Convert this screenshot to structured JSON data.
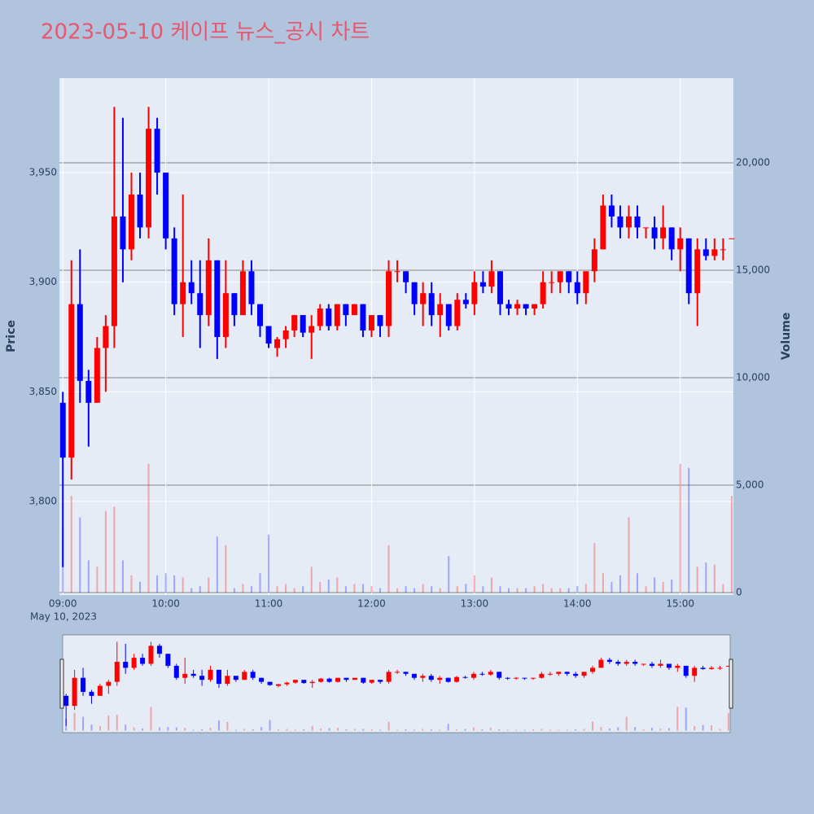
{
  "chart_data": {
    "type": "candlestick",
    "title": "2023-05-10 케이프 뉴스_공시 차트",
    "y_label": "Price",
    "y2_label": "Volume",
    "x_date_label": "May 10, 2023",
    "increasing_color": "#ff0000",
    "decreasing_color": "#0000ff",
    "xlim": [
      "2023-05-10 08:58",
      "2023-05-10 15:31"
    ],
    "xticks": [
      {
        "value": "2023-05-10 09:00",
        "label": "09:00"
      },
      {
        "value": "2023-05-10 10:00",
        "label": "10:00"
      },
      {
        "value": "2023-05-10 11:00",
        "label": "11:00"
      },
      {
        "value": "2023-05-10 12:00",
        "label": "12:00"
      },
      {
        "value": "2023-05-10 13:00",
        "label": "13:00"
      },
      {
        "value": "2023-05-10 14:00",
        "label": "14:00"
      },
      {
        "value": "2023-05-10 15:00",
        "label": "15:00"
      }
    ],
    "ylim": [
      3757.3,
      3993.1
    ],
    "yticks": [
      {
        "value": 3800,
        "label": "3,800"
      },
      {
        "value": 3850,
        "label": "3,850"
      },
      {
        "value": 3900,
        "label": "3,900"
      },
      {
        "value": 3950,
        "label": "3,950"
      }
    ],
    "y2lim": [
      -114,
      23939
    ],
    "y2ticks": [
      0,
      {
        "value": 5000,
        "label": "5,000"
      },
      {
        "value": 10000,
        "label": "10,000"
      },
      {
        "value": 15000,
        "label": "15,000"
      },
      {
        "value": 20000,
        "label": "20,000"
      }
    ],
    "x": [
      "2023-05-10 09:00",
      "2023-05-10 09:05",
      "2023-05-10 09:10",
      "2023-05-10 09:15",
      "2023-05-10 09:20",
      "2023-05-10 09:25",
      "2023-05-10 09:30",
      "2023-05-10 09:35",
      "2023-05-10 09:40",
      "2023-05-10 09:45",
      "2023-05-10 09:50",
      "2023-05-10 09:55",
      "2023-05-10 10:00",
      "2023-05-10 10:05",
      "2023-05-10 10:10",
      "2023-05-10 10:15",
      "2023-05-10 10:20",
      "2023-05-10 10:25",
      "2023-05-10 10:30",
      "2023-05-10 10:35",
      "2023-05-10 10:40",
      "2023-05-10 10:45",
      "2023-05-10 10:50",
      "2023-05-10 10:55",
      "2023-05-10 11:00",
      "2023-05-10 11:05",
      "2023-05-10 11:10",
      "2023-05-10 11:15",
      "2023-05-10 11:20",
      "2023-05-10 11:25",
      "2023-05-10 11:30",
      "2023-05-10 11:35",
      "2023-05-10 11:40",
      "2023-05-10 11:45",
      "2023-05-10 11:50",
      "2023-05-10 11:55",
      "2023-05-10 12:00",
      "2023-05-10 12:05",
      "2023-05-10 12:10",
      "2023-05-10 12:15",
      "2023-05-10 12:20",
      "2023-05-10 12:25",
      "2023-05-10 12:30",
      "2023-05-10 12:35",
      "2023-05-10 12:40",
      "2023-05-10 12:45",
      "2023-05-10 12:50",
      "2023-05-10 12:55",
      "2023-05-10 13:00",
      "2023-05-10 13:05",
      "2023-05-10 13:10",
      "2023-05-10 13:15",
      "2023-05-10 13:20",
      "2023-05-10 13:25",
      "2023-05-10 13:30",
      "2023-05-10 13:35",
      "2023-05-10 13:40",
      "2023-05-10 13:45",
      "2023-05-10 13:50",
      "2023-05-10 13:55",
      "2023-05-10 14:00",
      "2023-05-10 14:05",
      "2023-05-10 14:10",
      "2023-05-10 14:15",
      "2023-05-10 14:20",
      "2023-05-10 14:25",
      "2023-05-10 14:30",
      "2023-05-10 14:35",
      "2023-05-10 14:40",
      "2023-05-10 14:45",
      "2023-05-10 14:50",
      "2023-05-10 14:55",
      "2023-05-10 15:00",
      "2023-05-10 15:05",
      "2023-05-10 15:10",
      "2023-05-10 15:15",
      "2023-05-10 15:20",
      "2023-05-10 15:25",
      "2023-05-10 15:30"
    ],
    "open": [
      3845,
      3820,
      3890,
      3855,
      3845,
      3870,
      3880,
      3930,
      3915,
      3940,
      3925,
      3970,
      3950,
      3920,
      3890,
      3900,
      3895,
      3885,
      3910,
      3875,
      3895,
      3885,
      3905,
      3890,
      3880,
      3870,
      3874,
      3878,
      3885,
      3877,
      3880,
      3888,
      3880,
      3890,
      3885,
      3890,
      3878,
      3885,
      3880,
      3905,
      3905,
      3900,
      3890,
      3895,
      3885,
      3890,
      3880,
      3892,
      3890,
      3900,
      3898,
      3905,
      3890,
      3888,
      3890,
      3888,
      3890,
      3900,
      3900,
      3905,
      3900,
      3895,
      3905,
      3915,
      3935,
      3930,
      3925,
      3930,
      3925,
      3925,
      3920,
      3925,
      3915,
      3920,
      3895,
      3915,
      3912,
      3915,
      3920
    ],
    "high": [
      3850,
      3910,
      3915,
      3860,
      3875,
      3885,
      3980,
      3975,
      3950,
      3950,
      3980,
      3975,
      3950,
      3925,
      3940,
      3910,
      3910,
      3920,
      3910,
      3910,
      3895,
      3910,
      3910,
      3890,
      3880,
      3875,
      3880,
      3885,
      3885,
      3885,
      3890,
      3890,
      3890,
      3890,
      3890,
      3890,
      3885,
      3885,
      3910,
      3910,
      3905,
      3900,
      3900,
      3900,
      3895,
      3890,
      3895,
      3895,
      3905,
      3905,
      3910,
      3905,
      3892,
      3892,
      3890,
      3890,
      3905,
      3905,
      3905,
      3905,
      3905,
      3905,
      3920,
      3940,
      3940,
      3935,
      3935,
      3935,
      3925,
      3930,
      3935,
      3925,
      3925,
      3920,
      3920,
      3920,
      3920,
      3920,
      3920
    ],
    "low": [
      3770,
      3810,
      3845,
      3825,
      3845,
      3850,
      3870,
      3900,
      3910,
      3920,
      3920,
      3940,
      3915,
      3885,
      3875,
      3890,
      3870,
      3880,
      3865,
      3870,
      3880,
      3885,
      3885,
      3875,
      3870,
      3866,
      3870,
      3875,
      3875,
      3865,
      3878,
      3878,
      3878,
      3880,
      3885,
      3875,
      3875,
      3875,
      3875,
      3900,
      3895,
      3885,
      3880,
      3880,
      3875,
      3878,
      3878,
      3888,
      3885,
      3895,
      3895,
      3885,
      3885,
      3885,
      3885,
      3885,
      3888,
      3895,
      3895,
      3895,
      3890,
      3890,
      3900,
      3915,
      3925,
      3920,
      3920,
      3920,
      3920,
      3915,
      3915,
      3910,
      3905,
      3890,
      3880,
      3910,
      3910,
      3910,
      3920
    ],
    "close": [
      3820,
      3890,
      3855,
      3845,
      3870,
      3880,
      3930,
      3915,
      3940,
      3925,
      3970,
      3950,
      3920,
      3890,
      3900,
      3895,
      3885,
      3910,
      3875,
      3895,
      3885,
      3905,
      3890,
      3880,
      3872,
      3874,
      3878,
      3885,
      3877,
      3880,
      3888,
      3880,
      3890,
      3885,
      3890,
      3878,
      3885,
      3880,
      3905,
      3905,
      3900,
      3890,
      3895,
      3885,
      3890,
      3880,
      3892,
      3890,
      3900,
      3898,
      3905,
      3890,
      3888,
      3890,
      3888,
      3890,
      3900,
      3900,
      3905,
      3900,
      3895,
      3905,
      3915,
      3935,
      3930,
      3925,
      3930,
      3925,
      3925,
      3920,
      3925,
      3915,
      3920,
      3895,
      3915,
      3912,
      3915,
      3915,
      3920
    ],
    "volume": [
      3000,
      4500,
      3500,
      1500,
      1200,
      3800,
      4000,
      1500,
      800,
      500,
      6000,
      800,
      900,
      800,
      700,
      200,
      300,
      700,
      2600,
      2200,
      200,
      400,
      300,
      900,
      2700,
      300,
      400,
      200,
      300,
      1200,
      500,
      600,
      700,
      300,
      400,
      400,
      300,
      200,
      2200,
      200,
      300,
      200,
      400,
      300,
      200,
      1700,
      300,
      400,
      800,
      300,
      700,
      300,
      200,
      200,
      200,
      300,
      400,
      200,
      200,
      200,
      300,
      400,
      2300,
      900,
      500,
      800,
      3500,
      900,
      300,
      700,
      500,
      600,
      6000,
      5800,
      1200,
      1400,
      1300,
      400,
      4500
    ]
  }
}
